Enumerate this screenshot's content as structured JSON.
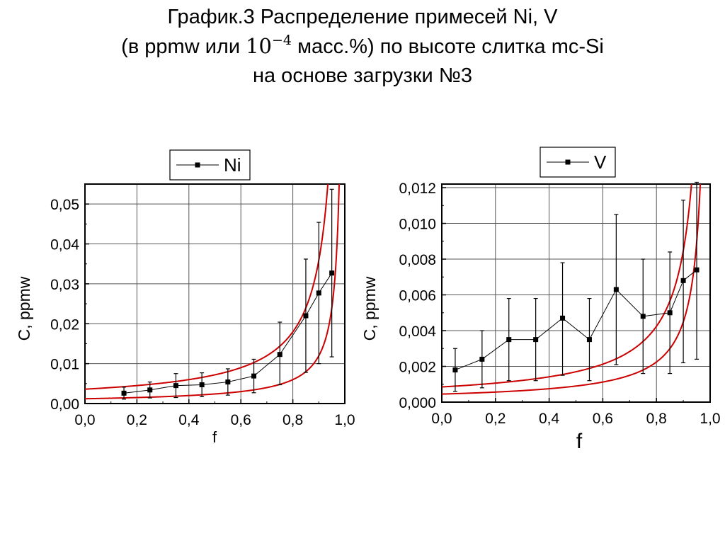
{
  "title": {
    "line1": "График.3 Распределение примесей Ni, V",
    "line2_a": "(в ppmw или ",
    "line2_base": "10",
    "line2_exp": "−4",
    "line2_b": " масс.%) по высоте слитка mc-Si",
    "line3": "на основе загрузки №3"
  },
  "chart_data": [
    {
      "type": "scatter",
      "legend": [
        "Ni"
      ],
      "legend_position": "top-right",
      "grid": true,
      "xlabel": "f",
      "ylabel": "C, ppmw",
      "xlim": [
        0.0,
        1.0
      ],
      "ylim": [
        0.0,
        0.055
      ],
      "xticks": [
        0.0,
        0.2,
        0.4,
        0.6,
        0.8,
        1.0
      ],
      "xtick_labels": [
        "0,0",
        "0,2",
        "0,4",
        "0,6",
        "0,8",
        "1,0"
      ],
      "yticks": [
        0.0,
        0.01,
        0.02,
        0.03,
        0.04,
        0.05
      ],
      "ytick_labels": [
        "0,00",
        "0,01",
        "0,02",
        "0,03",
        "0,04",
        "0,05"
      ],
      "series": [
        {
          "name": "Ni",
          "color": "#000000",
          "marker": "square",
          "x": [
            0.15,
            0.25,
            0.35,
            0.45,
            0.55,
            0.65,
            0.75,
            0.85,
            0.9,
            0.95
          ],
          "y": [
            0.0026,
            0.0034,
            0.0045,
            0.0047,
            0.0054,
            0.0069,
            0.0123,
            0.022,
            0.0277,
            0.0327
          ],
          "err_low": [
            0.0015,
            0.002,
            0.003,
            0.003,
            0.0033,
            0.0042,
            0.0076,
            0.0142,
            0.0177,
            0.021
          ],
          "err_high": [
            0.0015,
            0.002,
            0.003,
            0.003,
            0.0033,
            0.0042,
            0.0081,
            0.0142,
            0.0177,
            0.021
          ]
        }
      ],
      "bound_curves": {
        "color": "#cc0000",
        "form": "C0*(1-f)^(k-1)",
        "k": 0.001,
        "C0_upper": 0.0036,
        "C0_lower": 0.0012
      }
    },
    {
      "type": "scatter",
      "legend": [
        "V"
      ],
      "legend_position": "top-right",
      "grid": true,
      "xlabel": "f",
      "ylabel": "C, ppmw",
      "xlim": [
        0.0,
        1.0
      ],
      "ylim": [
        0.0,
        0.0122
      ],
      "xticks": [
        0.0,
        0.2,
        0.4,
        0.6,
        0.8,
        1.0
      ],
      "xtick_labels": [
        "0,0",
        "0,2",
        "0,4",
        "0,6",
        "0,8",
        "1,0"
      ],
      "yticks": [
        0.0,
        0.002,
        0.004,
        0.006,
        0.008,
        0.01,
        0.012
      ],
      "ytick_labels": [
        "0,000",
        "0,002",
        "0,004",
        "0,006",
        "0,008",
        "0,010",
        "0,012"
      ],
      "series": [
        {
          "name": "V",
          "color": "#000000",
          "marker": "square",
          "x": [
            0.05,
            0.15,
            0.25,
            0.35,
            0.45,
            0.55,
            0.65,
            0.75,
            0.85,
            0.9,
            0.95
          ],
          "y": [
            0.0018,
            0.0024,
            0.0035,
            0.0035,
            0.0047,
            0.0035,
            0.0063,
            0.0048,
            0.005,
            0.0068,
            0.0074
          ],
          "err_low": [
            0.0012,
            0.0016,
            0.0023,
            0.0023,
            0.0032,
            0.0023,
            0.0042,
            0.0032,
            0.0034,
            0.0046,
            0.005
          ],
          "err_high": [
            0.0012,
            0.0016,
            0.0023,
            0.0023,
            0.0031,
            0.0023,
            0.0042,
            0.0032,
            0.0034,
            0.0045,
            0.0049
          ]
        }
      ],
      "bound_curves": {
        "color": "#cc0000",
        "form": "C0*(1-f)^(k-1)",
        "k": 0.001,
        "C0_upper": 0.00085,
        "C0_lower": 0.00045
      }
    }
  ]
}
